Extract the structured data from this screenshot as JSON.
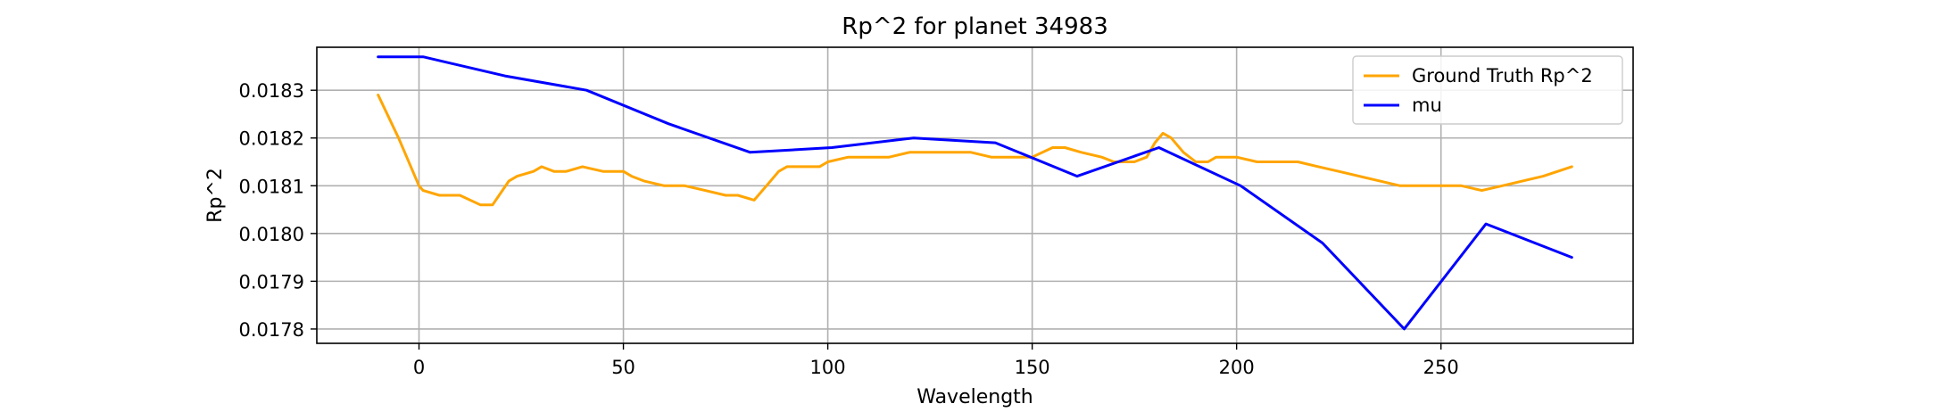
{
  "chart_data": {
    "type": "line",
    "title": "Rp^2 for planet 34983",
    "xlabel": "Wavelength",
    "ylabel": "Rp^2",
    "xlim": [
      -25,
      297
    ],
    "ylim": [
      0.01777,
      0.01839
    ],
    "xticks": [
      0,
      50,
      100,
      150,
      200,
      250
    ],
    "xtick_labels": [
      "0",
      "50",
      "100",
      "150",
      "200",
      "250"
    ],
    "yticks": [
      0.0178,
      0.0179,
      0.018,
      0.0181,
      0.0182,
      0.0183
    ],
    "ytick_labels": [
      "0.0178",
      "0.0179",
      "0.0180",
      "0.0181",
      "0.0182",
      "0.0183"
    ],
    "grid": true,
    "legend_position": "upper right",
    "series": [
      {
        "name": "Ground Truth Rp^2",
        "color": "#FFA500",
        "x": [
          -10,
          -5,
          0,
          1,
          5,
          10,
          15,
          18,
          22,
          24,
          28,
          30,
          33,
          36,
          40,
          45,
          50,
          52,
          55,
          60,
          65,
          70,
          75,
          78,
          82,
          85,
          88,
          90,
          92,
          95,
          98,
          100,
          105,
          110,
          115,
          120,
          125,
          128,
          132,
          135,
          140,
          145,
          150,
          155,
          158,
          162,
          167,
          170,
          175,
          178,
          180,
          182,
          184,
          187,
          190,
          193,
          195,
          200,
          205,
          210,
          215,
          220,
          225,
          230,
          235,
          240,
          245,
          250,
          255,
          260,
          265,
          270,
          275,
          282
        ],
        "y": [
          0.01829,
          0.0182,
          0.0181,
          0.01809,
          0.01808,
          0.01808,
          0.01806,
          0.01806,
          0.01811,
          0.01812,
          0.01813,
          0.01814,
          0.01813,
          0.01813,
          0.01814,
          0.01813,
          0.01813,
          0.01812,
          0.01811,
          0.0181,
          0.0181,
          0.01809,
          0.01808,
          0.01808,
          0.01807,
          0.0181,
          0.01813,
          0.01814,
          0.01814,
          0.01814,
          0.01814,
          0.01815,
          0.01816,
          0.01816,
          0.01816,
          0.01817,
          0.01817,
          0.01817,
          0.01817,
          0.01817,
          0.01816,
          0.01816,
          0.01816,
          0.01818,
          0.01818,
          0.01817,
          0.01816,
          0.01815,
          0.01815,
          0.01816,
          0.01819,
          0.01821,
          0.0182,
          0.01817,
          0.01815,
          0.01815,
          0.01816,
          0.01816,
          0.01815,
          0.01815,
          0.01815,
          0.01814,
          0.01813,
          0.01812,
          0.01811,
          0.0181,
          0.0181,
          0.0181,
          0.0181,
          0.01809,
          0.0181,
          0.01811,
          0.01812,
          0.01814
        ]
      },
      {
        "name": "mu",
        "color": "#0000FF",
        "x": [
          -10,
          1,
          21,
          41,
          61,
          81,
          101,
          121,
          141,
          161,
          181,
          201,
          221,
          241,
          261,
          282
        ],
        "y": [
          0.01837,
          0.01837,
          0.01833,
          0.0183,
          0.01823,
          0.01817,
          0.01818,
          0.0182,
          0.01819,
          0.01812,
          0.01818,
          0.0181,
          0.01798,
          0.0178,
          0.01802,
          0.01795
        ]
      }
    ]
  }
}
